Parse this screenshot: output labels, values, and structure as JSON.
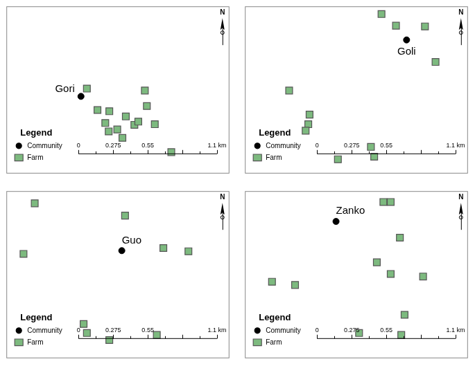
{
  "chart_data": [
    {
      "type": "scatter",
      "xlim": [
        0,
        1.77
      ],
      "ylim": [
        0,
        1.35
      ],
      "tick_labels": false,
      "legend": "lower left",
      "legend_title": "Legend",
      "north": "N",
      "scale_bar": {
        "ticks": [
          0,
          0.275,
          0.55,
          0.825,
          1.1
        ],
        "labels": [
          "0",
          "0.275",
          "0.55",
          null,
          "1.1 km"
        ]
      },
      "series": [
        {
          "name": "Community",
          "color": "#000000",
          "marker": "circle",
          "point_labels": [
            "Gori"
          ],
          "x": [
            0.592
          ],
          "values": [
            0.623
          ]
        },
        {
          "name": "Farm",
          "color": "#7dba7f",
          "marker": "square",
          "x": [
            0.639,
            0.723,
            0.817,
            0.785,
            0.812,
            0.88,
            0.921,
            0.948,
            1.016,
            1.047,
            1.099,
            1.115,
            1.178,
            1.309
          ],
          "values": [
            0.686,
            0.513,
            0.503,
            0.408,
            0.34,
            0.356,
            0.288,
            0.461,
            0.393,
            0.419,
            0.67,
            0.545,
            0.398,
            0.173
          ]
        }
      ]
    },
    {
      "type": "scatter",
      "xlim": [
        0,
        1.77
      ],
      "ylim": [
        0,
        1.35
      ],
      "tick_labels": false,
      "legend": "lower left",
      "legend_title": "Legend",
      "north": "N",
      "scale_bar": {
        "ticks": [
          0,
          0.275,
          0.55,
          0.825,
          1.1
        ],
        "labels": [
          "0",
          "0.275",
          "0.55",
          null,
          "1.1 km"
        ]
      },
      "series": [
        {
          "name": "Community",
          "color": "#000000",
          "marker": "circle",
          "point_labels": [
            "Goli"
          ],
          "x": [
            1.283
          ],
          "values": [
            1.079
          ]
        },
        {
          "name": "Farm",
          "color": "#7dba7f",
          "marker": "square",
          "x": [
            1.084,
            1.199,
            1.429,
            1.513,
            0.351,
            0.513,
            0.503,
            0.482,
            1.0,
            0.738,
            1.026
          ],
          "values": [
            1.288,
            1.194,
            1.188,
            0.901,
            0.67,
            0.476,
            0.398,
            0.346,
            0.215,
            0.115,
            0.136
          ]
        }
      ]
    },
    {
      "type": "scatter",
      "xlim": [
        0,
        1.77
      ],
      "ylim": [
        0,
        1.35
      ],
      "tick_labels": false,
      "legend": "lower left",
      "legend_title": "Legend",
      "north": "N",
      "scale_bar": {
        "ticks": [
          0,
          0.275,
          0.55,
          0.825,
          1.1
        ],
        "labels": [
          "0",
          "0.275",
          "0.55",
          null,
          "1.1 km"
        ]
      },
      "series": [
        {
          "name": "Community",
          "color": "#000000",
          "marker": "circle",
          "point_labels": [
            "Guo"
          ],
          "x": [
            0.916
          ],
          "values": [
            0.869
          ]
        },
        {
          "name": "Farm",
          "color": "#7dba7f",
          "marker": "square",
          "x": [
            0.225,
            0.942,
            0.136,
            1.246,
            1.445,
            0.613,
            0.639,
            0.817,
            1.194
          ],
          "values": [
            1.251,
            1.152,
            0.843,
            0.89,
            0.864,
            0.277,
            0.204,
            0.147,
            0.188
          ]
        }
      ]
    },
    {
      "type": "scatter",
      "xlim": [
        0,
        1.77
      ],
      "ylim": [
        0,
        1.35
      ],
      "tick_labels": false,
      "legend": "lower left",
      "legend_title": "Legend",
      "north": "N",
      "scale_bar": {
        "ticks": [
          0,
          0.275,
          0.55,
          0.825,
          1.1
        ],
        "labels": [
          "0",
          "0.275",
          "0.55",
          null,
          "1.1 km"
        ]
      },
      "series": [
        {
          "name": "Community",
          "color": "#000000",
          "marker": "circle",
          "point_labels": [
            "Zanko"
          ],
          "x": [
            0.723
          ],
          "values": [
            1.105
          ]
        },
        {
          "name": "Farm",
          "color": "#7dba7f",
          "marker": "square",
          "x": [
            1.099,
            1.157,
            1.23,
            1.047,
            1.157,
            1.414,
            0.215,
            0.398,
            1.267,
            0.906,
            1.241
          ],
          "values": [
            1.262,
            1.262,
            0.974,
            0.775,
            0.681,
            0.66,
            0.618,
            0.592,
            0.351,
            0.204,
            0.188
          ]
        }
      ]
    }
  ]
}
